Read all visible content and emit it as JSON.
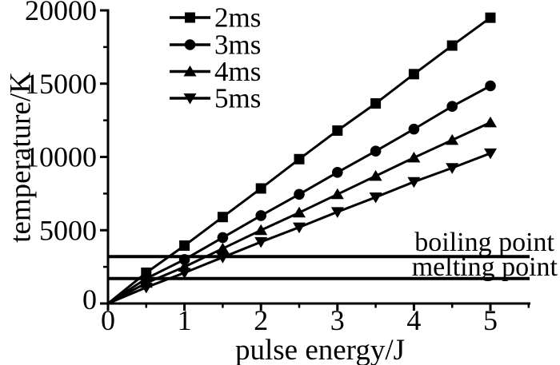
{
  "chart_data": {
    "type": "line",
    "title": "",
    "xlabel": "pulse energy/J",
    "ylabel": "temperature/K",
    "xlim": [
      0,
      5.5
    ],
    "ylim": [
      0,
      20000
    ],
    "grid": false,
    "legend_position": "top-inside",
    "foreground_color": "#000000",
    "background_color": "#ffffff",
    "x_major_ticks": [
      0,
      1,
      2,
      3,
      4,
      5
    ],
    "x_minor_ticks": [
      0.5,
      1.5,
      2.5,
      3.5,
      4.5,
      5.5
    ],
    "y_major_ticks": [
      0,
      5000,
      10000,
      15000,
      20000
    ],
    "y_minor_ticks": [
      2500,
      7500,
      12500,
      17500
    ],
    "x": [
      0,
      0.5,
      1,
      1.5,
      2,
      2.5,
      3,
      3.5,
      4,
      4.5,
      5
    ],
    "series": [
      {
        "name": "2ms",
        "marker": "square",
        "values": [
          0,
          2100,
          3950,
          5900,
          7850,
          9850,
          11800,
          13650,
          15650,
          17600,
          19500
        ]
      },
      {
        "name": "3ms",
        "marker": "circle",
        "values": [
          0,
          1700,
          3000,
          4500,
          6000,
          7450,
          8950,
          10400,
          11900,
          13450,
          14850
        ]
      },
      {
        "name": "4ms",
        "marker": "triangle-up",
        "values": [
          0,
          1400,
          2500,
          3750,
          5000,
          6200,
          7450,
          8700,
          9950,
          11150,
          12350
        ]
      },
      {
        "name": "5ms",
        "marker": "triangle-down",
        "values": [
          0,
          1100,
          2100,
          3150,
          4200,
          5200,
          6250,
          7250,
          8300,
          9250,
          10250
        ]
      }
    ],
    "annotations": [
      {
        "label": "boiling point",
        "value": 3200
      },
      {
        "label": "melting point",
        "value": 1700
      }
    ]
  }
}
